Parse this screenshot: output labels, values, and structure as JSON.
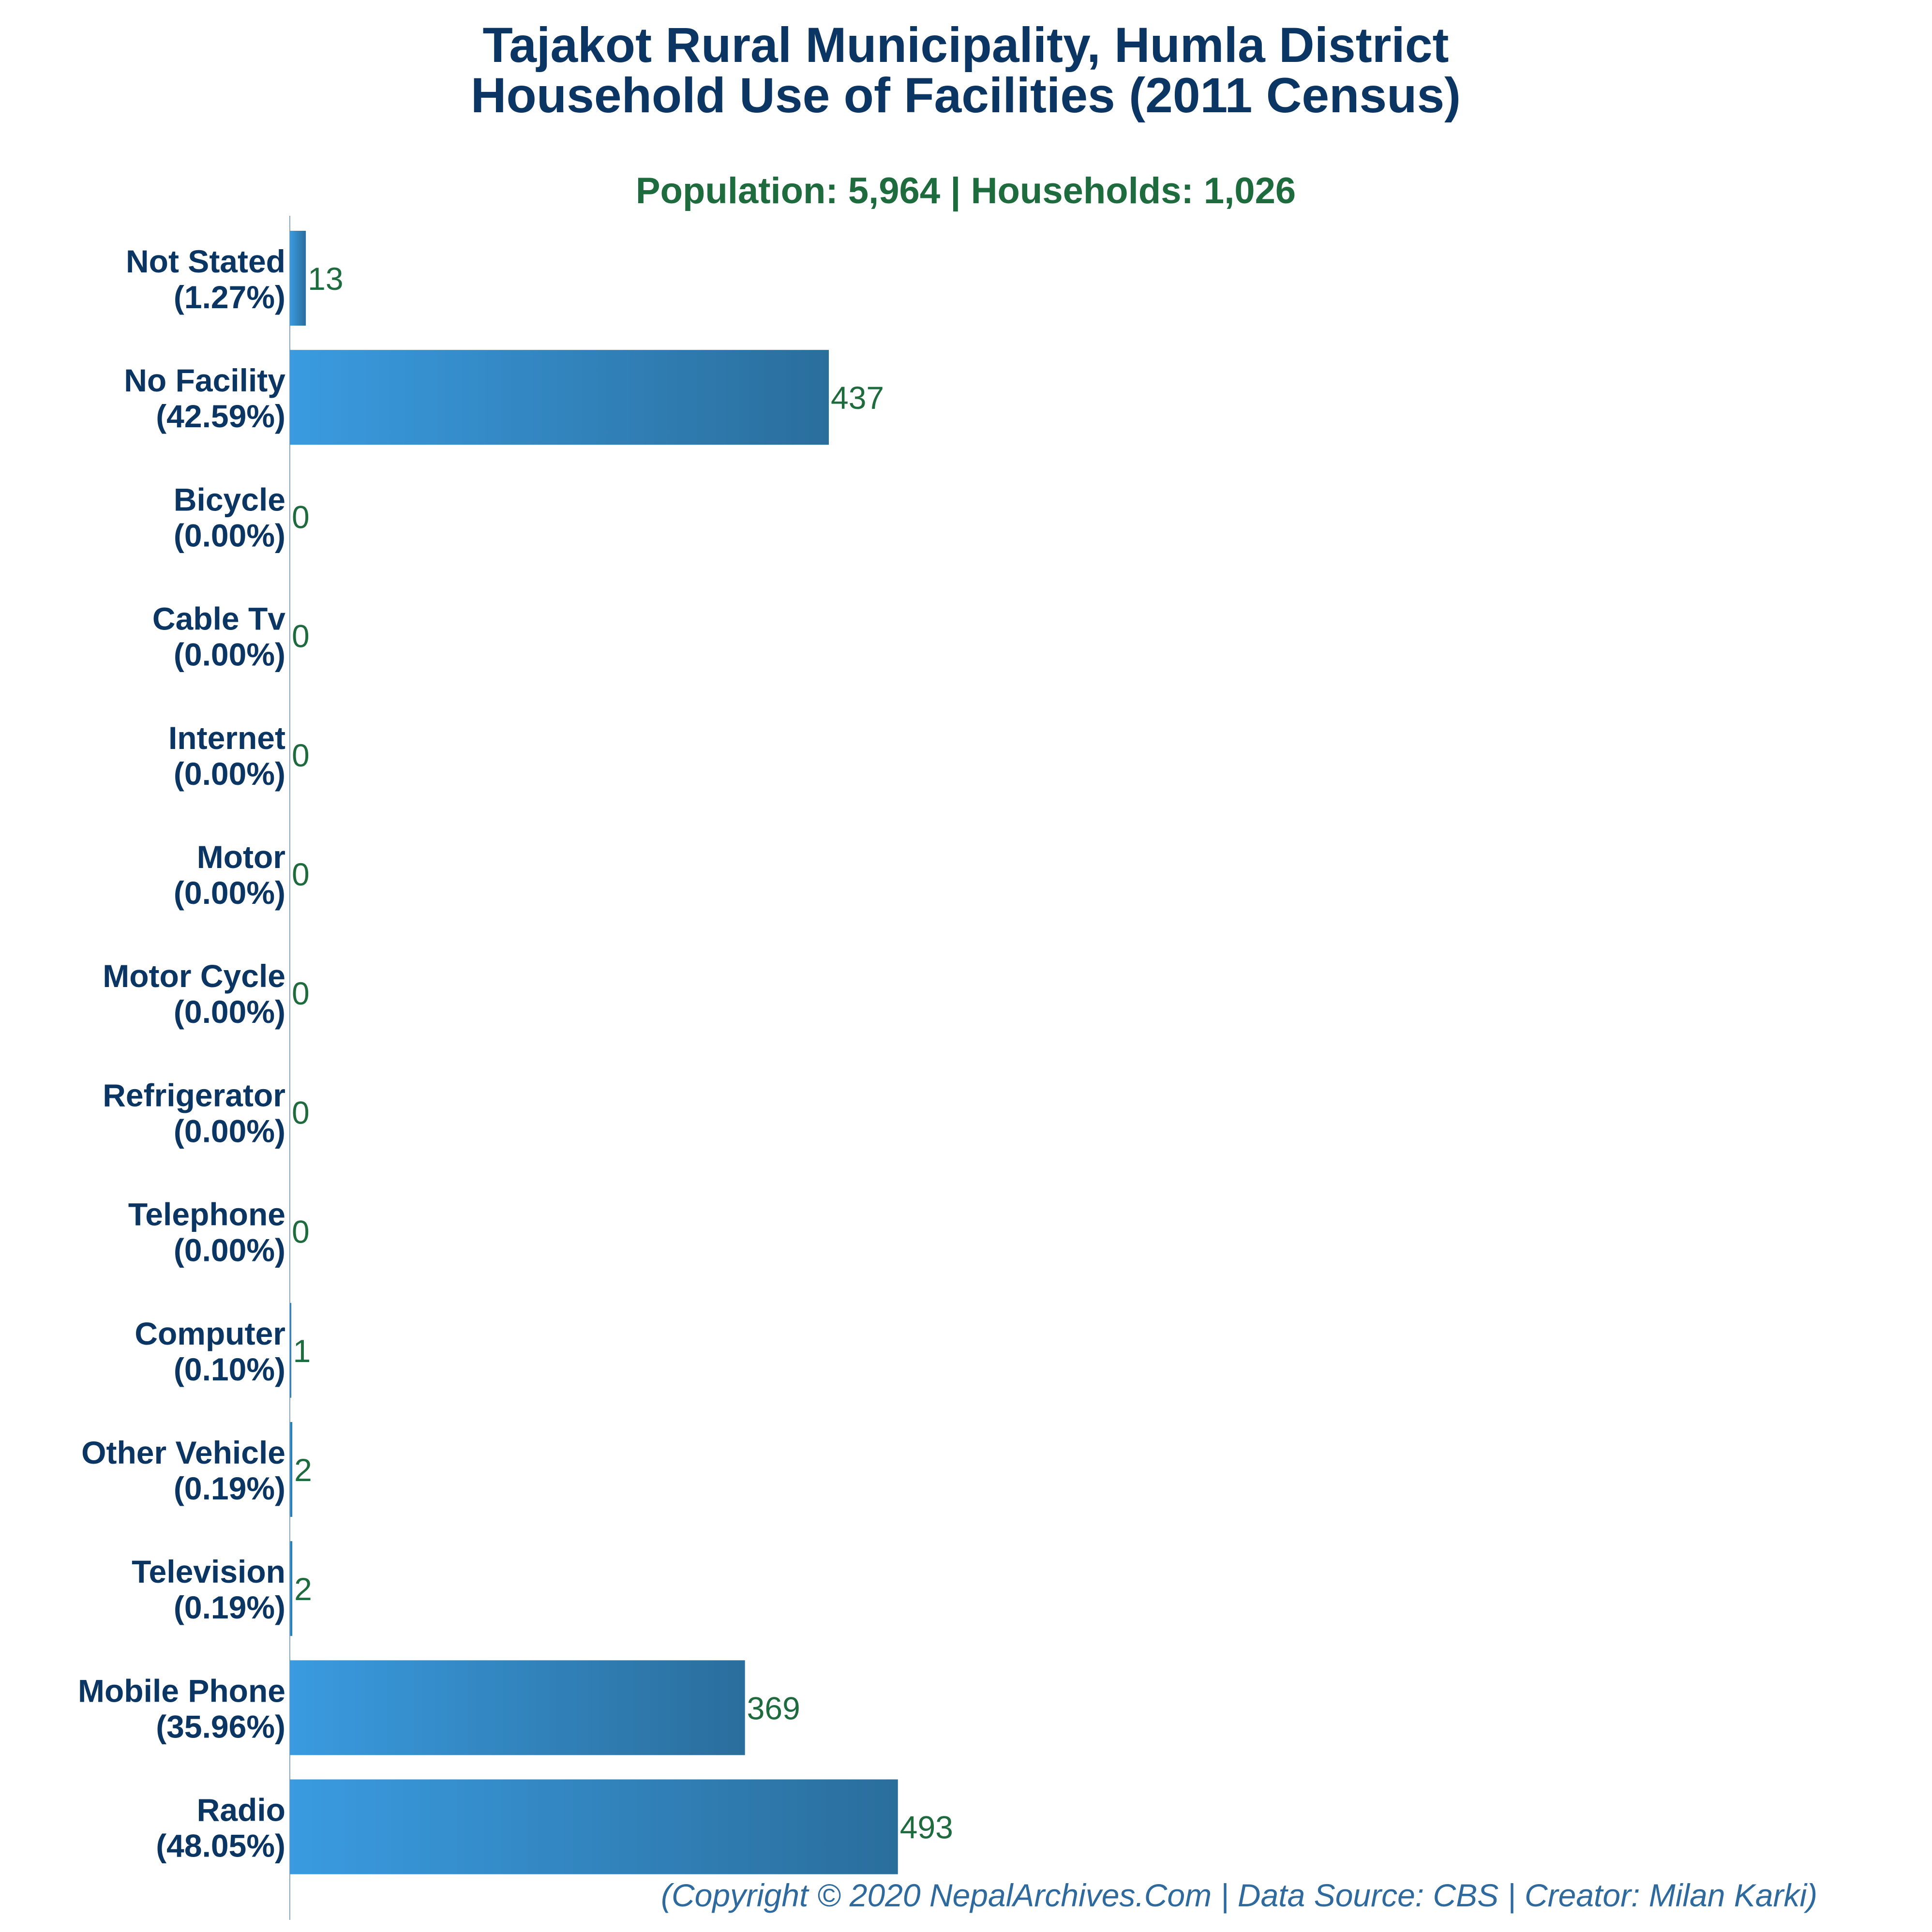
{
  "colors": {
    "title": "#0b3563",
    "subtitle": "#1e6b3e",
    "value_label": "#1e6b3e",
    "category_label": "#0b3563",
    "bar_gradient_start": "#3a9be0",
    "bar_gradient_end": "#2a6e9c",
    "axis_line": "#8aa4b8",
    "credit": "#2e6a9e"
  },
  "chart_data": {
    "type": "bar",
    "orientation": "horizontal",
    "title_lines": [
      "Tajakot Rural Municipality, Humla District",
      "Household Use of Facilities (2011 Census)"
    ],
    "subtitle": "Population: 5,964 | Households: 1,026",
    "credit": "(Copyright © 2020 NepalArchives.Com | Data Source: CBS | Creator: Milan Karki)",
    "xlim": [
      0,
      1260
    ],
    "grid": false,
    "bars": [
      {
        "name": "Not Stated",
        "percent": "(1.27%)",
        "value": 13
      },
      {
        "name": "No Facility",
        "percent": "(42.59%)",
        "value": 437
      },
      {
        "name": "Bicycle",
        "percent": "(0.00%)",
        "value": 0
      },
      {
        "name": "Cable Tv",
        "percent": "(0.00%)",
        "value": 0
      },
      {
        "name": "Internet",
        "percent": "(0.00%)",
        "value": 0
      },
      {
        "name": "Motor",
        "percent": "(0.00%)",
        "value": 0
      },
      {
        "name": "Motor Cycle",
        "percent": "(0.00%)",
        "value": 0
      },
      {
        "name": "Refrigerator",
        "percent": "(0.00%)",
        "value": 0
      },
      {
        "name": "Telephone",
        "percent": "(0.00%)",
        "value": 0
      },
      {
        "name": "Computer",
        "percent": "(0.10%)",
        "value": 1
      },
      {
        "name": "Other Vehicle",
        "percent": "(0.19%)",
        "value": 2
      },
      {
        "name": "Television",
        "percent": "(0.19%)",
        "value": 2
      },
      {
        "name": "Mobile Phone",
        "percent": "(35.96%)",
        "value": 369
      },
      {
        "name": "Radio",
        "percent": "(48.05%)",
        "value": 493
      }
    ]
  }
}
